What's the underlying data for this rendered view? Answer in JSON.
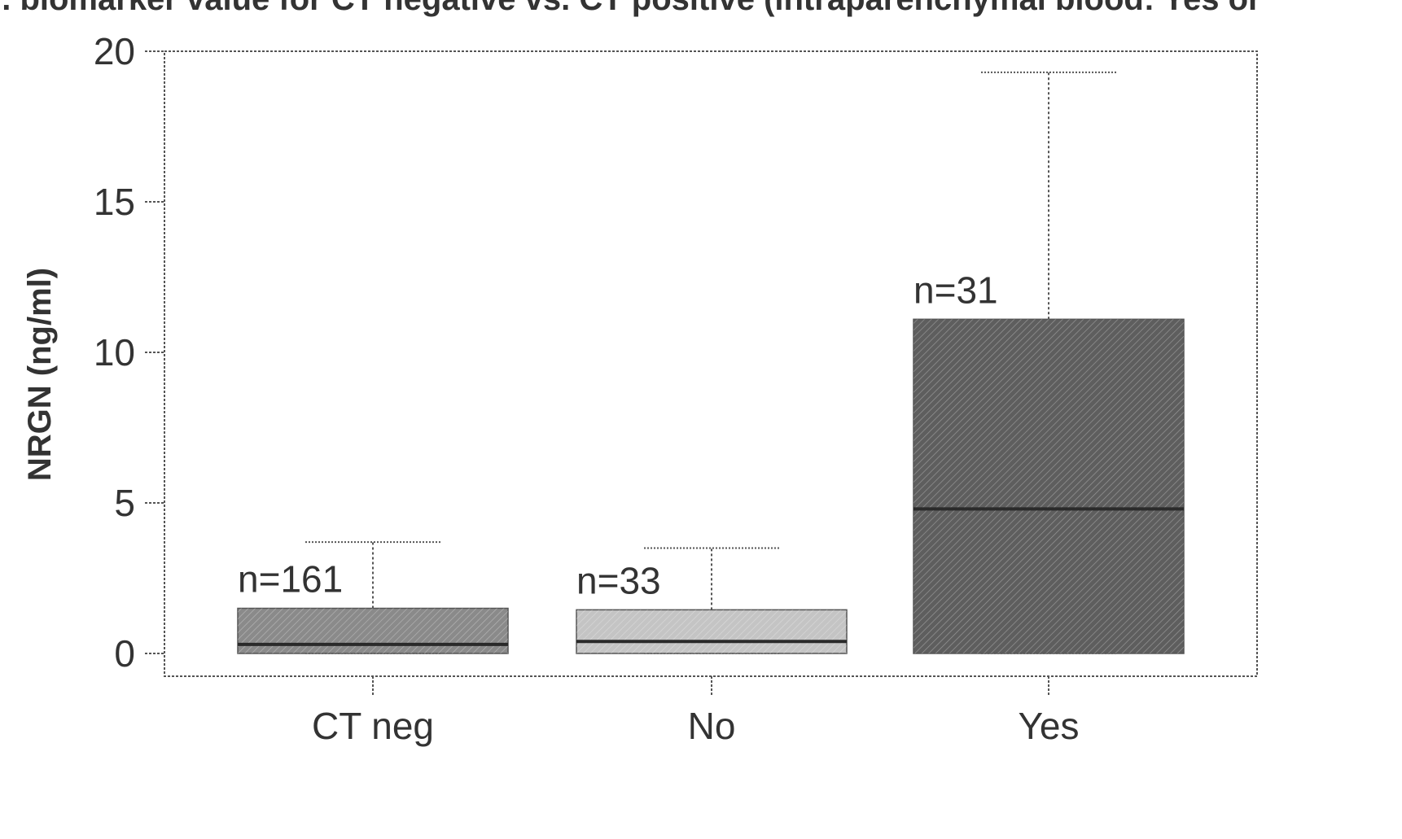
{
  "chart_data": {
    "type": "box",
    "title": "... biomarker value for CT negative vs. CT positive (intraparenchymal blood: Yes or",
    "xlabel": "",
    "ylabel": "NRGN (ng/ml)",
    "ylim": [
      -1.5,
      20
    ],
    "yticks": [
      0,
      5,
      10,
      15,
      20
    ],
    "grid": false,
    "legend": "none",
    "categories": [
      "CT neg",
      "No",
      "Yes"
    ],
    "boxes": [
      {
        "category": "CT neg",
        "n_label": "n=161",
        "whisker_low": 0.0,
        "q1": 0.0,
        "median": 0.3,
        "q3": 1.5,
        "whisker_high": 3.7,
        "fill": "#8a8a8a"
      },
      {
        "category": "No",
        "n_label": "n=33",
        "whisker_low": 0.0,
        "q1": 0.0,
        "median": 0.4,
        "q3": 1.45,
        "whisker_high": 3.5,
        "fill": "#c4c4c4"
      },
      {
        "category": "Yes",
        "n_label": "n=31",
        "whisker_low": 0.0,
        "q1": 0.0,
        "median": 4.8,
        "q3": 11.1,
        "whisker_high": 19.3,
        "fill": "#5e5e5e"
      }
    ],
    "colors": {
      "axis": "#555555",
      "median": "#2a2a2a",
      "text": "#333333"
    }
  }
}
